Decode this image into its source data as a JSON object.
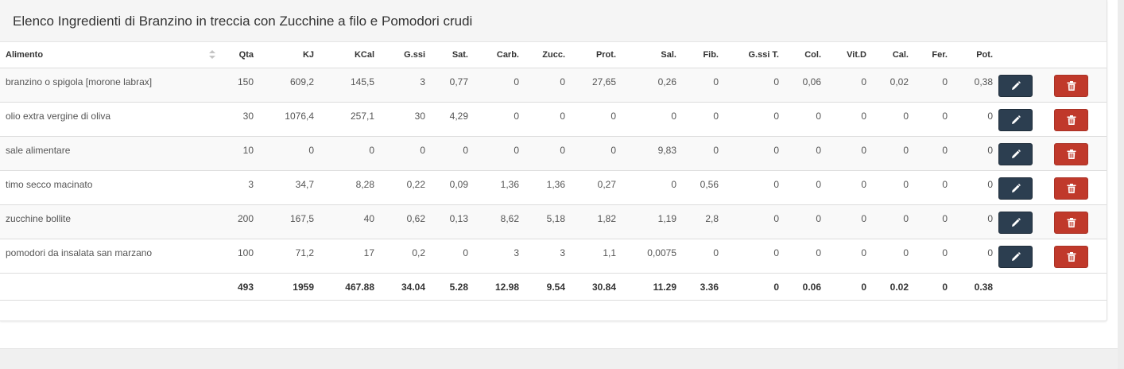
{
  "panel": {
    "title": "Elenco Ingredienti di Branzino in treccia con Zucchine a filo e Pomodori crudi"
  },
  "columns": [
    "Alimento",
    "Qta",
    "KJ",
    "KCal",
    "G.ssi",
    "Sat.",
    "Carb.",
    "Zucc.",
    "Prot.",
    "Sal.",
    "Fib.",
    "G.ssi T.",
    "Col.",
    "Vit.D",
    "Cal.",
    "Fer.",
    "Pot."
  ],
  "rows": [
    {
      "alimento": "branzino o spigola [morone labrax]",
      "qta": "150",
      "kj": "609,2",
      "kcal": "145,5",
      "gssi": "3",
      "sat": "0,77",
      "carb": "0",
      "zucc": "0",
      "prot": "27,65",
      "sal": "0,26",
      "fib": "0",
      "gssit": "0",
      "col": "0,06",
      "vitd": "0",
      "cal": "0,02",
      "fer": "0",
      "pot": "0,38"
    },
    {
      "alimento": "olio extra vergine di oliva",
      "qta": "30",
      "kj": "1076,4",
      "kcal": "257,1",
      "gssi": "30",
      "sat": "4,29",
      "carb": "0",
      "zucc": "0",
      "prot": "0",
      "sal": "0",
      "fib": "0",
      "gssit": "0",
      "col": "0",
      "vitd": "0",
      "cal": "0",
      "fer": "0",
      "pot": "0"
    },
    {
      "alimento": "sale alimentare",
      "qta": "10",
      "kj": "0",
      "kcal": "0",
      "gssi": "0",
      "sat": "0",
      "carb": "0",
      "zucc": "0",
      "prot": "0",
      "sal": "9,83",
      "fib": "0",
      "gssit": "0",
      "col": "0",
      "vitd": "0",
      "cal": "0",
      "fer": "0",
      "pot": "0"
    },
    {
      "alimento": "timo secco macinato",
      "qta": "3",
      "kj": "34,7",
      "kcal": "8,28",
      "gssi": "0,22",
      "sat": "0,09",
      "carb": "1,36",
      "zucc": "1,36",
      "prot": "0,27",
      "sal": "0",
      "fib": "0,56",
      "gssit": "0",
      "col": "0",
      "vitd": "0",
      "cal": "0",
      "fer": "0",
      "pot": "0"
    },
    {
      "alimento": "zucchine bollite",
      "qta": "200",
      "kj": "167,5",
      "kcal": "40",
      "gssi": "0,62",
      "sat": "0,13",
      "carb": "8,62",
      "zucc": "5,18",
      "prot": "1,82",
      "sal": "1,19",
      "fib": "2,8",
      "gssit": "0",
      "col": "0",
      "vitd": "0",
      "cal": "0",
      "fer": "0",
      "pot": "0"
    },
    {
      "alimento": "pomodori da insalata san marzano",
      "qta": "100",
      "kj": "71,2",
      "kcal": "17",
      "gssi": "0,2",
      "sat": "0",
      "carb": "3",
      "zucc": "3",
      "prot": "1,1",
      "sal": "0,0075",
      "fib": "0",
      "gssit": "0",
      "col": "0",
      "vitd": "0",
      "cal": "0",
      "fer": "0",
      "pot": "0"
    }
  ],
  "totals": {
    "alimento": "",
    "qta": "493",
    "kj": "1959",
    "kcal": "467.88",
    "gssi": "34.04",
    "sat": "5.28",
    "carb": "12.98",
    "zucc": "9.54",
    "prot": "30.84",
    "sal": "11.29",
    "fib": "3.36",
    "gssit": "0",
    "col": "0.06",
    "vitd": "0",
    "cal": "0.02",
    "fer": "0",
    "pot": "0.38"
  },
  "colors": {
    "edit_button": "#2c3e50",
    "delete_button": "#c0392b"
  },
  "icons": {
    "edit": "pencil-icon",
    "delete": "trash-icon",
    "sort": "sort-icon"
  }
}
